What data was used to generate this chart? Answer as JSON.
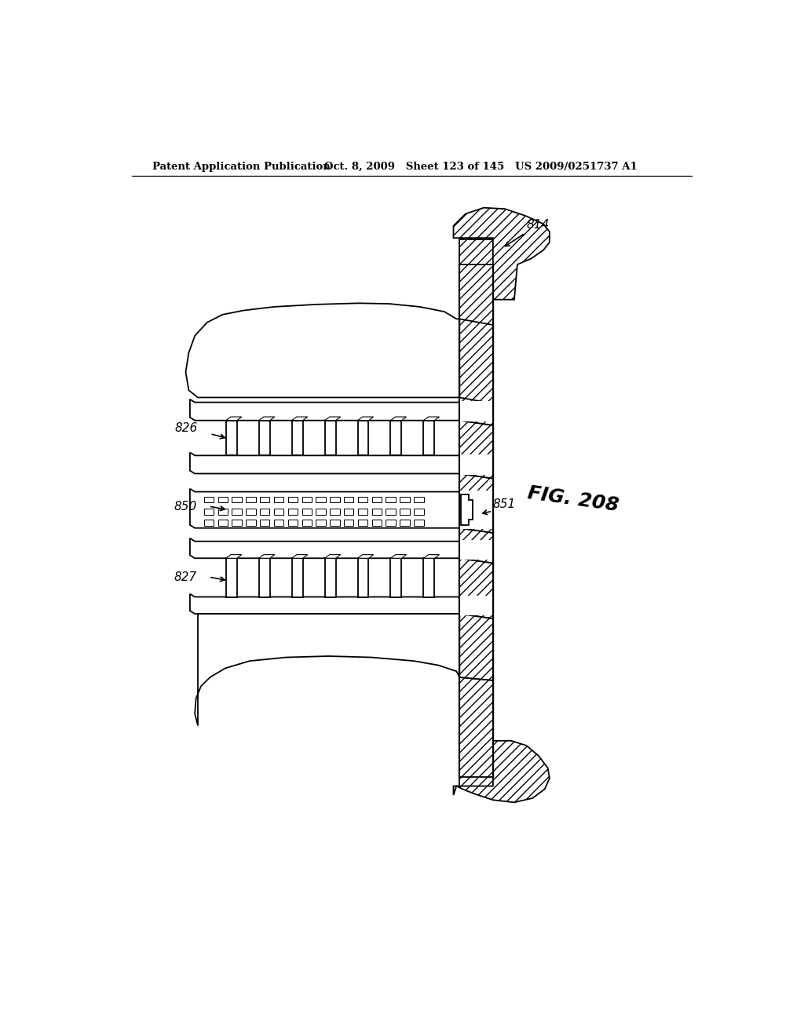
{
  "title_left": "Patent Application Publication",
  "title_right": "Oct. 8, 2009   Sheet 123 of 145   US 2009/0251737 A1",
  "fig_label": "FIG. 208",
  "bg_color": "#ffffff",
  "line_color": "#000000"
}
